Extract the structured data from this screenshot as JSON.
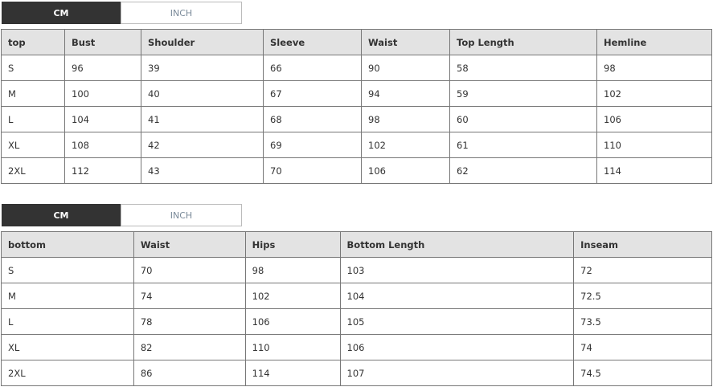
{
  "unit_tabs": {
    "cm": "CM",
    "inch": "INCH",
    "active": "CM"
  },
  "top_table": {
    "headers": [
      "top",
      "Bust",
      "Shoulder",
      "Sleeve",
      "Waist",
      "Top Length",
      "Hemline"
    ],
    "rows": [
      [
        "S",
        "96",
        "39",
        "66",
        "90",
        "58",
        "98"
      ],
      [
        "M",
        "100",
        "40",
        "67",
        "94",
        "59",
        "102"
      ],
      [
        "L",
        "104",
        "41",
        "68",
        "98",
        "60",
        "106"
      ],
      [
        "XL",
        "108",
        "42",
        "69",
        "102",
        "61",
        "110"
      ],
      [
        "2XL",
        "112",
        "43",
        "70",
        "106",
        "62",
        "114"
      ]
    ]
  },
  "bottom_table": {
    "headers": [
      "bottom",
      "Waist",
      "Hips",
      "Bottom Length",
      "Inseam"
    ],
    "rows": [
      [
        "S",
        "70",
        "98",
        "103",
        "72"
      ],
      [
        "M",
        "74",
        "102",
        "104",
        "72.5"
      ],
      [
        "L",
        "78",
        "106",
        "105",
        "73.5"
      ],
      [
        "XL",
        "82",
        "110",
        "106",
        "74"
      ],
      [
        "2XL",
        "86",
        "114",
        "107",
        "74.5"
      ]
    ]
  }
}
